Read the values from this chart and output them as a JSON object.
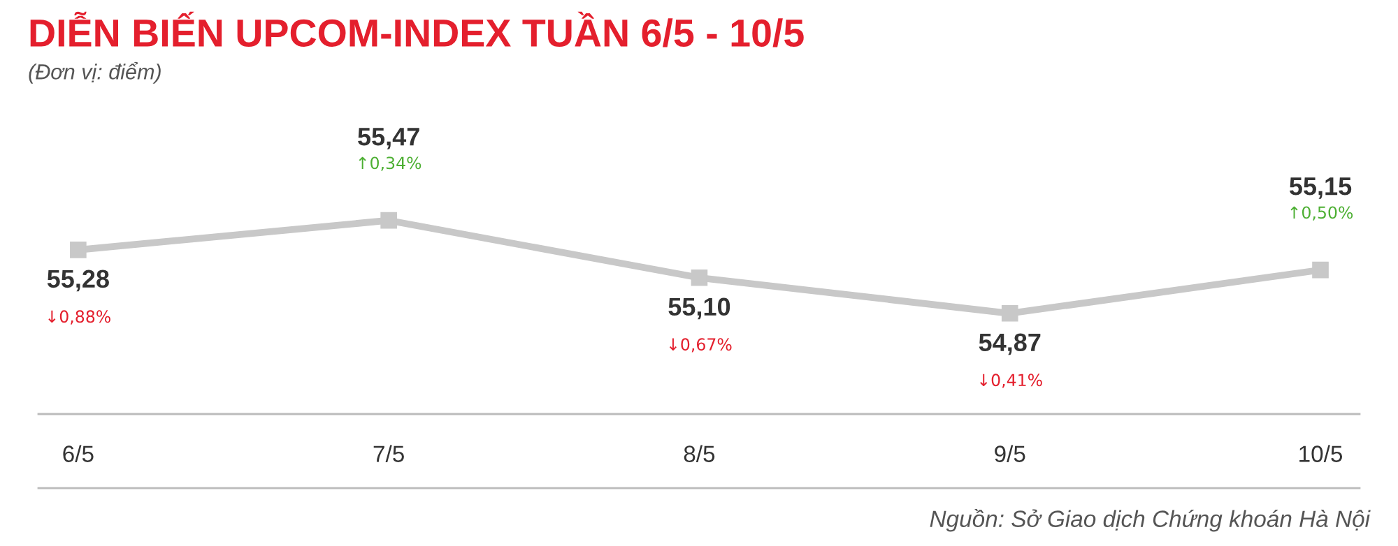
{
  "chart_data": {
    "type": "line",
    "title": "DIỄN BIẾN UPCOM-INDEX TUẦN 6/5 - 10/5",
    "subtitle": "(Đơn vị: điểm)",
    "categories": [
      "6/5",
      "7/5",
      "8/5",
      "9/5",
      "10/5"
    ],
    "series": [
      {
        "color": "#c8c8c8",
        "values": [
          55.28,
          55.47,
          55.1,
          54.87,
          55.15
        ],
        "value_labels": [
          "55,28",
          "55,47",
          "55,10",
          "54,87",
          "55,15"
        ]
      }
    ],
    "tick_labels": "x",
    "marker": "square",
    "line_style": "solid",
    "grid": false,
    "legend": false,
    "annotations": [
      "↓0,88%",
      "↑0,34%",
      "↓0,67%",
      "↓0,41%",
      "↑0,50%",
      "Nguồn: Sở Giao dịch Chứng khoán Hà Nội"
    ]
  }
}
